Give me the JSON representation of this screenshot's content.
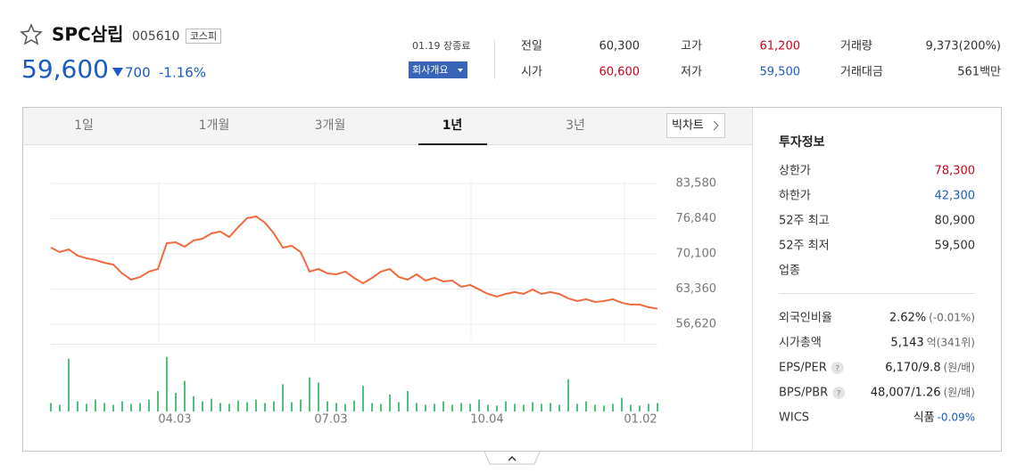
{
  "header": {
    "name": "SPC삼립",
    "code": "005610",
    "market": "코스피",
    "price": "59,600",
    "change": "700",
    "change_rate": "-1.16%",
    "date_status": "01.19 장종료",
    "company_button": "회사개요"
  },
  "quote": {
    "rows": [
      [
        {
          "label": "전일",
          "value": "60,300"
        },
        {
          "label": "고가",
          "value": "61,200",
          "color": "#d0021b"
        },
        {
          "label": "거래량",
          "value": "9,373(200%)"
        }
      ],
      [
        {
          "label": "시가",
          "value": "60,600",
          "color": "#d0021b"
        },
        {
          "label": "저가",
          "value": "59,500",
          "color": "#1a5bc4"
        },
        {
          "label": "거래대금",
          "value": "561백만"
        }
      ]
    ]
  },
  "tabs": [
    "1일",
    "1개월",
    "3개월",
    "1년",
    "3년"
  ],
  "active_tab": 3,
  "big_chart": "빅차트",
  "invest": {
    "title": "투자정보",
    "rows": [
      {
        "label": "상한가",
        "value": "78,300",
        "color": "#d0021b"
      },
      {
        "label": "하한가",
        "value": "42,300",
        "color": "#1a5bc4"
      },
      {
        "label": "52주 최고",
        "value": "80,900"
      },
      {
        "label": "52주 최저",
        "value": "59,500"
      },
      {
        "label": "업종"
      }
    ],
    "rows2": [
      {
        "label": "외국인비율",
        "value": "2.62%",
        "note": "(-0.01%)"
      },
      {
        "label": "시가총액",
        "value": "5,143",
        "note": "억(341위)"
      },
      {
        "label": "EPS/PER",
        "help": "?",
        "value": "6,170/9.8",
        "note": "(원/배)"
      },
      {
        "label": "BPS/PBR",
        "help": "?",
        "value": "48,007/1.26",
        "note": "(원/배)"
      },
      {
        "label": "WICS",
        "value": "식품",
        "note": "-0.09%",
        "note_color": "#1a5bc4"
      }
    ]
  },
  "chart_data": {
    "type": "line",
    "color": "#f06a3e",
    "grid": true,
    "values": [
      71300,
      70450,
      70960,
      69770,
      69260,
      68920,
      68400,
      68060,
      66360,
      65160,
      65680,
      66700,
      67210,
      72160,
      72330,
      71480,
      72670,
      73010,
      74030,
      74380,
      73350,
      75230,
      76940,
      77280,
      76080,
      74030,
      71300,
      71650,
      70450,
      66700,
      67210,
      66360,
      66190,
      66700,
      65500,
      64480,
      65500,
      66700,
      67210,
      65680,
      65160,
      66190,
      64990,
      65500,
      64820,
      64990,
      63800,
      64140,
      63290,
      62430,
      61920,
      62430,
      62780,
      62430,
      63290,
      62430,
      62780,
      62430,
      61580,
      61070,
      61410,
      60900,
      61070,
      61410,
      60730,
      60390,
      60390,
      59880,
      59600
    ],
    "xlim": [
      0,
      68
    ],
    "xticks": [
      {
        "value": 12.1,
        "label": "04.03"
      },
      {
        "value": 29.6,
        "label": "07.03"
      },
      {
        "value": 47.1,
        "label": "10.04"
      },
      {
        "value": 64.3,
        "label": "01.02"
      }
    ],
    "ylim": [
      53380,
      84100
    ],
    "yticks": [
      {
        "value": 56620,
        "label": "56,620"
      },
      {
        "value": 63360,
        "label": "63,360"
      },
      {
        "value": 70100,
        "label": "70,100"
      },
      {
        "value": 76840,
        "label": "76,840"
      },
      {
        "value": 83580,
        "label": "83,580"
      }
    ],
    "volume": {
      "type": "bar",
      "color": "#4fc27b",
      "ylim": [
        0,
        70
      ],
      "values": [
        10,
        8,
        62,
        12,
        9,
        14,
        10,
        8,
        12,
        9,
        10,
        14,
        24,
        64,
        22,
        36,
        18,
        12,
        15,
        10,
        9,
        13,
        11,
        14,
        10,
        12,
        32,
        11,
        14,
        40,
        34,
        12,
        10,
        9,
        13,
        30,
        10,
        9,
        20,
        11,
        24,
        10,
        8,
        9,
        12,
        8,
        10,
        9,
        14,
        8,
        7,
        12,
        9,
        8,
        11,
        9,
        10,
        8,
        38,
        9,
        12,
        8,
        7,
        9,
        16,
        8,
        7,
        9,
        10
      ]
    }
  }
}
